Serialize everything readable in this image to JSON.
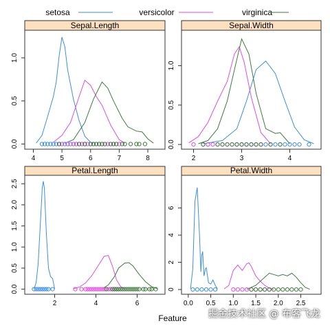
{
  "chart_data": {
    "type": "line",
    "xlabel": "Feature",
    "legend": {
      "placement": "top",
      "entries": [
        {
          "name": "setosa",
          "color": "#3a8ee6"
        },
        {
          "name": "versicolor",
          "color": "#e44ae4"
        },
        {
          "name": "virginica",
          "color": "#3f7a3f"
        }
      ]
    },
    "panels": [
      {
        "title": "Sepal.Length",
        "xlim": [
          3.7,
          8.6
        ],
        "ylim": [
          -0.06,
          1.32
        ],
        "xticks": [
          4,
          5,
          6,
          7,
          8
        ],
        "yticks": [
          0.0,
          0.5,
          1.0
        ],
        "xtick_labels": [
          "4",
          "5",
          "6",
          "7",
          "8"
        ],
        "ytick_labels": [
          "0.0",
          "0.5",
          "1.0"
        ],
        "series": [
          {
            "name": "setosa",
            "x": [
              4.1,
              4.3,
              4.5,
              4.7,
              4.8,
              4.9,
              5.0,
              5.1,
              5.2,
              5.4,
              5.6,
              5.8,
              6.0,
              6.1
            ],
            "y": [
              0.01,
              0.1,
              0.32,
              0.55,
              0.72,
              1.02,
              1.24,
              1.13,
              0.86,
              0.52,
              0.27,
              0.09,
              0.02,
              0.01
            ]
          },
          {
            "name": "versicolor",
            "x": [
              4.7,
              5.0,
              5.3,
              5.6,
              5.8,
              6.0,
              6.2,
              6.4,
              6.7,
              7.0,
              7.2
            ],
            "y": [
              0.02,
              0.1,
              0.25,
              0.55,
              0.74,
              0.68,
              0.55,
              0.45,
              0.22,
              0.05,
              0.01
            ]
          },
          {
            "name": "virginica",
            "x": [
              5.1,
              5.4,
              5.8,
              6.1,
              6.4,
              6.6,
              6.8,
              7.1,
              7.3,
              7.6,
              7.8,
              8.0,
              8.2
            ],
            "y": [
              0.01,
              0.05,
              0.25,
              0.52,
              0.72,
              0.65,
              0.5,
              0.3,
              0.2,
              0.15,
              0.14,
              0.06,
              0.01
            ]
          }
        ],
        "rugs": [
          {
            "name": "setosa",
            "x": [
              4.3,
              4.4,
              4.5,
              4.6,
              4.7,
              4.8,
              4.9,
              5.0,
              5.1,
              5.2,
              5.3,
              5.4,
              5.5,
              5.7,
              5.8
            ]
          },
          {
            "name": "versicolor",
            "x": [
              4.9,
              5.0,
              5.2,
              5.4,
              5.5,
              5.6,
              5.7,
              5.8,
              5.9,
              6.0,
              6.1,
              6.2,
              6.3,
              6.4,
              6.5,
              6.6,
              6.7,
              6.8,
              6.9,
              7.0
            ]
          },
          {
            "name": "virginica",
            "x": [
              4.9,
              5.6,
              5.8,
              6.0,
              6.1,
              6.2,
              6.3,
              6.4,
              6.5,
              6.7,
              6.8,
              6.9,
              7.1,
              7.2,
              7.4,
              7.6,
              7.7,
              7.9
            ]
          }
        ]
      },
      {
        "title": "Sepal.Width",
        "xlim": [
          1.75,
          4.65
        ],
        "ylim": [
          -0.06,
          1.45
        ],
        "xticks": [
          2,
          3,
          4
        ],
        "yticks": [
          0.0,
          0.5,
          1.0
        ],
        "xtick_labels": [
          "2",
          "3",
          "4"
        ],
        "ytick_labels": [
          "0.0",
          "0.5",
          "1.0"
        ],
        "series": [
          {
            "name": "setosa",
            "x": [
              2.2,
              2.6,
              2.9,
              3.1,
              3.3,
              3.5,
              3.7,
              3.9,
              4.1,
              4.3,
              4.5
            ],
            "y": [
              0.01,
              0.05,
              0.2,
              0.55,
              0.95,
              1.06,
              0.9,
              0.55,
              0.22,
              0.06,
              0.01
            ]
          },
          {
            "name": "versicolor",
            "x": [
              1.9,
              2.1,
              2.3,
              2.5,
              2.7,
              2.85,
              2.95,
              3.05,
              3.2,
              3.4,
              3.6
            ],
            "y": [
              0.02,
              0.1,
              0.28,
              0.55,
              0.8,
              1.15,
              1.24,
              1.05,
              0.6,
              0.15,
              0.01
            ]
          },
          {
            "name": "virginica",
            "x": [
              2.1,
              2.3,
              2.5,
              2.7,
              2.85,
              3.0,
              3.15,
              3.3,
              3.5,
              3.7,
              3.8,
              3.9,
              4.0
            ],
            "y": [
              0.01,
              0.05,
              0.2,
              0.55,
              0.95,
              1.34,
              1.15,
              0.65,
              0.2,
              0.14,
              0.15,
              0.08,
              0.01
            ]
          }
        ],
        "rugs": [
          {
            "name": "setosa",
            "x": [
              2.3,
              2.9,
              3.0,
              3.1,
              3.2,
              3.3,
              3.4,
              3.5,
              3.6,
              3.7,
              3.8,
              3.9,
              4.0,
              4.1,
              4.2,
              4.4
            ]
          },
          {
            "name": "versicolor",
            "x": [
              2.0,
              2.2,
              2.3,
              2.4,
              2.5,
              2.6,
              2.7,
              2.8,
              2.9,
              3.0,
              3.1,
              3.2,
              3.3,
              3.4
            ]
          },
          {
            "name": "virginica",
            "x": [
              2.2,
              2.5,
              2.6,
              2.7,
              2.8,
              2.9,
              3.0,
              3.1,
              3.2,
              3.3,
              3.4,
              3.6,
              3.8
            ]
          }
        ]
      },
      {
        "title": "Petal.Length",
        "xlim": [
          0.55,
          7.35
        ],
        "ylim": [
          -0.12,
          2.7
        ],
        "xticks": [
          2,
          4,
          6
        ],
        "yticks": [
          0.0,
          0.5,
          1.0,
          1.5,
          2.0,
          2.5
        ],
        "xtick_labels": [
          "2",
          "4",
          "6"
        ],
        "ytick_labels": [
          "0.0",
          "0.5",
          "1.0",
          "1.5",
          "2.0",
          "2.5"
        ],
        "series": [
          {
            "name": "setosa",
            "x": [
              1.0,
              1.1,
              1.2,
              1.3,
              1.4,
              1.45,
              1.5,
              1.6,
              1.7,
              1.8,
              1.9,
              2.0
            ],
            "y": [
              0.01,
              0.15,
              0.6,
              1.5,
              2.4,
              2.56,
              2.4,
              1.3,
              0.5,
              0.3,
              0.25,
              0.01
            ]
          },
          {
            "name": "versicolor",
            "x": [
              2.9,
              3.2,
              3.5,
              3.8,
              4.1,
              4.4,
              4.6,
              4.8,
              5.0,
              5.2,
              5.4
            ],
            "y": [
              0.01,
              0.05,
              0.15,
              0.32,
              0.55,
              0.78,
              0.8,
              0.55,
              0.22,
              0.06,
              0.01
            ]
          },
          {
            "name": "virginica",
            "x": [
              4.3,
              4.6,
              4.9,
              5.1,
              5.4,
              5.6,
              5.8,
              6.1,
              6.4,
              6.7,
              7.0
            ],
            "y": [
              0.01,
              0.1,
              0.3,
              0.5,
              0.62,
              0.63,
              0.55,
              0.35,
              0.18,
              0.06,
              0.01
            ]
          }
        ],
        "rugs": [
          {
            "name": "setosa",
            "x": [
              1.0,
              1.1,
              1.2,
              1.3,
              1.4,
              1.5,
              1.6,
              1.7,
              1.9
            ]
          },
          {
            "name": "versicolor",
            "x": [
              3.0,
              3.3,
              3.5,
              3.6,
              3.7,
              3.8,
              3.9,
              4.0,
              4.1,
              4.2,
              4.3,
              4.4,
              4.5,
              4.6,
              4.7,
              4.8,
              4.9,
              5.0,
              5.1
            ]
          },
          {
            "name": "virginica",
            "x": [
              4.5,
              4.8,
              4.9,
              5.0,
              5.1,
              5.2,
              5.3,
              5.4,
              5.5,
              5.6,
              5.7,
              5.8,
              5.9,
              6.0,
              6.1,
              6.3,
              6.4,
              6.6,
              6.7,
              6.9
            ]
          }
        ]
      },
      {
        "title": "Petal.Width",
        "xlim": [
          -0.15,
          2.95
        ],
        "ylim": [
          -0.35,
          8.4
        ],
        "xticks": [
          0.0,
          0.5,
          1.0,
          1.5,
          2.0,
          2.5
        ],
        "yticks": [
          0,
          2,
          4,
          6
        ],
        "xtick_labels": [
          "0.0",
          "0.5",
          "1.0",
          "1.5",
          "2.0",
          "2.5"
        ],
        "ytick_labels": [
          "0",
          "2",
          "4",
          "6"
        ],
        "series": [
          {
            "name": "setosa",
            "x": [
              0.05,
              0.1,
              0.15,
              0.2,
              0.25,
              0.28,
              0.3,
              0.32,
              0.35,
              0.38,
              0.4,
              0.45,
              0.5,
              0.55,
              0.6,
              0.65
            ],
            "y": [
              0.05,
              1.5,
              6.5,
              7.5,
              4.0,
              1.3,
              2.5,
              2.8,
              1.0,
              1.5,
              1.6,
              0.5,
              0.4,
              0.7,
              0.3,
              0.05
            ]
          },
          {
            "name": "versicolor",
            "x": [
              0.8,
              0.9,
              1.0,
              1.1,
              1.2,
              1.3,
              1.35,
              1.4,
              1.5,
              1.6,
              1.7,
              1.8,
              1.9
            ],
            "y": [
              0.05,
              0.3,
              1.4,
              1.8,
              1.4,
              1.9,
              1.95,
              1.7,
              1.0,
              0.6,
              0.3,
              0.1,
              0.02
            ]
          },
          {
            "name": "virginica",
            "x": [
              1.3,
              1.5,
              1.7,
              1.8,
              1.9,
              2.0,
              2.1,
              2.2,
              2.3,
              2.4,
              2.5,
              2.6,
              2.7
            ],
            "y": [
              0.02,
              0.3,
              0.9,
              1.2,
              1.1,
              1.0,
              1.1,
              1.0,
              1.2,
              0.9,
              0.5,
              0.15,
              0.02
            ]
          }
        ],
        "rugs": [
          {
            "name": "setosa",
            "x": [
              0.1,
              0.2,
              0.3,
              0.4,
              0.5,
              0.6
            ]
          },
          {
            "name": "versicolor",
            "x": [
              1.0,
              1.1,
              1.2,
              1.3,
              1.4,
              1.5,
              1.6,
              1.7,
              1.8
            ]
          },
          {
            "name": "virginica",
            "x": [
              1.4,
              1.5,
              1.6,
              1.7,
              1.8,
              1.9,
              2.0,
              2.1,
              2.2,
              2.3,
              2.4,
              2.5
            ]
          }
        ]
      }
    ]
  },
  "watermark": "掘金技术社区 @ 布客飞龙",
  "colors": {
    "strip_bg": "#fde0c0",
    "frame": "#333333"
  }
}
